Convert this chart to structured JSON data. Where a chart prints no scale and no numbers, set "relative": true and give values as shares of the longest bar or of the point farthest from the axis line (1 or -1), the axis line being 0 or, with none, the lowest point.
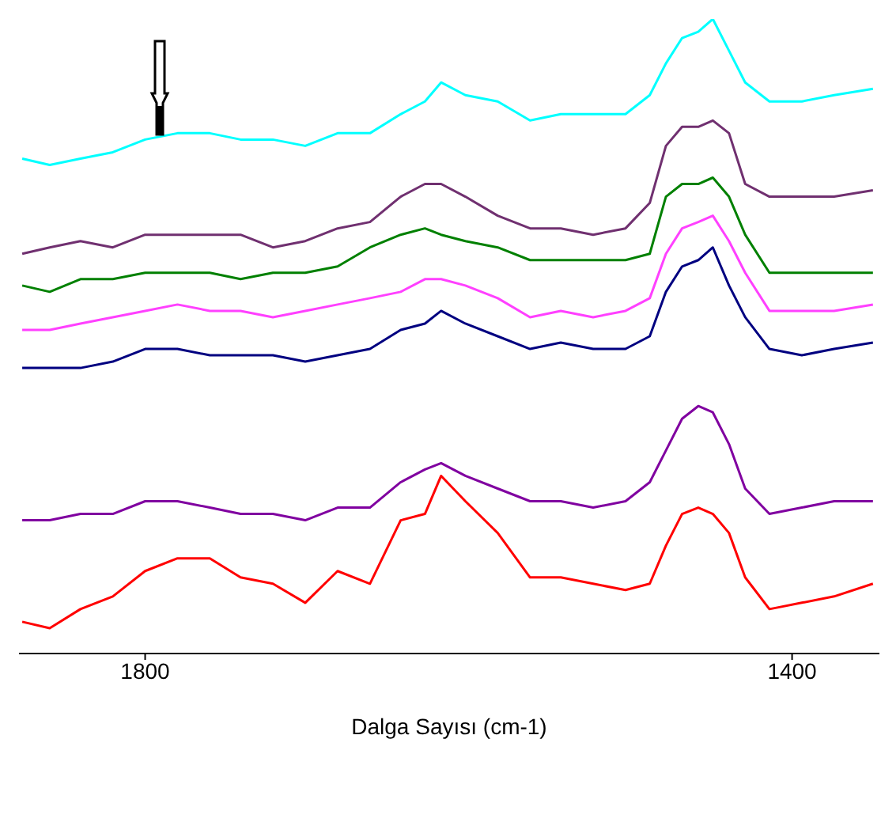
{
  "chart_data": {
    "type": "line",
    "relative": true,
    "xlabel": "Dalga Sayısı (cm-1)",
    "xlim": [
      1878,
      1346
    ],
    "xticks": [
      1800,
      1400
    ],
    "tick_labels": "x",
    "grid": false,
    "legend": false,
    "marker": "none",
    "line_style": "solid",
    "x": [
      1876,
      1859,
      1840,
      1820,
      1800,
      1780,
      1760,
      1741,
      1721,
      1701,
      1681,
      1661,
      1642,
      1627,
      1617,
      1602,
      1582,
      1562,
      1543,
      1523,
      1503,
      1488,
      1478,
      1468,
      1458,
      1449,
      1439,
      1429,
      1414,
      1394,
      1374,
      1350
    ],
    "series": [
      {
        "color": "#00ffff",
        "values": [
          0.78,
          0.77,
          0.78,
          0.79,
          0.81,
          0.82,
          0.82,
          0.81,
          0.81,
          0.8,
          0.82,
          0.82,
          0.85,
          0.87,
          0.9,
          0.88,
          0.87,
          0.84,
          0.85,
          0.85,
          0.85,
          0.88,
          0.93,
          0.97,
          0.98,
          1,
          0.95,
          0.9,
          0.87,
          0.87,
          0.88,
          0.89
        ]
      },
      {
        "color": "#703070",
        "values": [
          0.63,
          0.64,
          0.65,
          0.64,
          0.66,
          0.66,
          0.66,
          0.66,
          0.64,
          0.65,
          0.67,
          0.68,
          0.72,
          0.74,
          0.74,
          0.72,
          0.69,
          0.67,
          0.67,
          0.66,
          0.67,
          0.71,
          0.8,
          0.83,
          0.83,
          0.84,
          0.82,
          0.74,
          0.72,
          0.72,
          0.72,
          0.73
        ]
      },
      {
        "color": "#008000",
        "values": [
          0.58,
          0.57,
          0.59,
          0.59,
          0.6,
          0.6,
          0.6,
          0.59,
          0.6,
          0.6,
          0.61,
          0.64,
          0.66,
          0.67,
          0.66,
          0.65,
          0.64,
          0.62,
          0.62,
          0.62,
          0.62,
          0.63,
          0.72,
          0.74,
          0.74,
          0.75,
          0.72,
          0.66,
          0.6,
          0.6,
          0.6,
          0.6
        ]
      },
      {
        "color": "#ff40ff",
        "values": [
          0.51,
          0.51,
          0.52,
          0.53,
          0.54,
          0.55,
          0.54,
          0.54,
          0.53,
          0.54,
          0.55,
          0.56,
          0.57,
          0.59,
          0.59,
          0.58,
          0.56,
          0.53,
          0.54,
          0.53,
          0.54,
          0.56,
          0.63,
          0.67,
          0.68,
          0.69,
          0.65,
          0.6,
          0.54,
          0.54,
          0.54,
          0.55
        ]
      },
      {
        "color": "#000080",
        "values": [
          0.45,
          0.45,
          0.45,
          0.46,
          0.48,
          0.48,
          0.47,
          0.47,
          0.47,
          0.46,
          0.47,
          0.48,
          0.51,
          0.52,
          0.54,
          0.52,
          0.5,
          0.48,
          0.49,
          0.48,
          0.48,
          0.5,
          0.57,
          0.61,
          0.62,
          0.64,
          0.58,
          0.53,
          0.48,
          0.47,
          0.48,
          0.49
        ]
      },
      {
        "color": "#8000a0",
        "values": [
          0.21,
          0.21,
          0.22,
          0.22,
          0.24,
          0.24,
          0.23,
          0.22,
          0.22,
          0.21,
          0.23,
          0.23,
          0.27,
          0.29,
          0.3,
          0.28,
          0.26,
          0.24,
          0.24,
          0.23,
          0.24,
          0.27,
          0.32,
          0.37,
          0.39,
          0.38,
          0.33,
          0.26,
          0.22,
          0.23,
          0.24,
          0.24
        ]
      },
      {
        "color": "#ff0000",
        "values": [
          0.05,
          0.04,
          0.07,
          0.09,
          0.13,
          0.15,
          0.15,
          0.12,
          0.11,
          0.08,
          0.13,
          0.11,
          0.21,
          0.22,
          0.28,
          0.24,
          0.19,
          0.12,
          0.12,
          0.11,
          0.1,
          0.11,
          0.17,
          0.22,
          0.23,
          0.22,
          0.19,
          0.12,
          0.07,
          0.08,
          0.09,
          0.11
        ]
      }
    ]
  }
}
